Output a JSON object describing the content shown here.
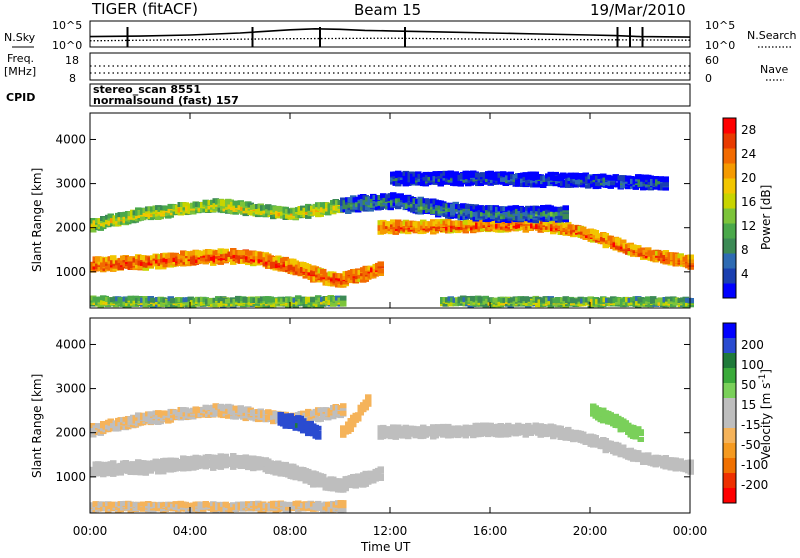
{
  "header": {
    "title": "TIGER (fitACF)",
    "beam": "Beam 15",
    "date": "19/Mar/2010"
  },
  "top_panel": {
    "nsky_label": "N.Sky",
    "nsearch_label": "N.Search",
    "y_top": "10^5",
    "y_bottom": "10^0",
    "freq_label": "Freq.",
    "freq_unit": "[MHz]",
    "freq_top": "18",
    "freq_bottom": "8",
    "nave_top": "60",
    "nave_bottom": "0",
    "nave_label": "Nave",
    "cpid_label": "CPID",
    "cpid_line1": "stereo_scan 8551",
    "cpid_line2": "normalsound (fast) 157"
  },
  "colors": {
    "power": [
      "#0000ff",
      "#1a3fb0",
      "#2e6bb3",
      "#3c8a55",
      "#4aa84a",
      "#7cc43a",
      "#c8d400",
      "#f2c600",
      "#f59a00",
      "#f26a00",
      "#e83a00",
      "#ff0000"
    ],
    "velocity": [
      "#0000ff",
      "#2a4bd0",
      "#1f7a3a",
      "#3aaa3a",
      "#7ad05a",
      "#bebebe",
      "#bebebe",
      "#f5b35a",
      "#f59a20",
      "#f07000",
      "#ee3000",
      "#ff0000"
    ],
    "ground": "#bebebe"
  },
  "chart_data": [
    {
      "type": "heatmap",
      "name": "power",
      "xlabel": "",
      "ylabel": "Slant Range [km]",
      "x_ticks": [
        "00:00",
        "04:00",
        "08:00",
        "12:00",
        "16:00",
        "20:00",
        "00:00"
      ],
      "y_ticks": [
        "1000",
        "2000",
        "3000",
        "4000"
      ],
      "xlim": [
        0,
        24
      ],
      "ylim": [
        180,
        4600
      ],
      "colorbar": {
        "label": "Power [dB]",
        "ticks": [
          "4",
          "8",
          "12",
          "16",
          "20",
          "24",
          "28"
        ],
        "range": [
          0,
          30
        ]
      },
      "echo_bands": [
        {
          "x": [
            0,
            2,
            4,
            6,
            8,
            9,
            10,
            11.5
          ],
          "center": [
            1150,
            1200,
            1300,
            1350,
            1100,
            900,
            800,
            1050
          ],
          "width": 220,
          "value": 27
        },
        {
          "x": [
            11.5,
            13,
            16,
            18,
            19.5,
            21,
            22,
            24
          ],
          "center": [
            2000,
            2000,
            2050,
            2050,
            1900,
            1600,
            1400,
            1200
          ],
          "width": 180,
          "value": 26
        },
        {
          "x": [
            0,
            2,
            5,
            8,
            10
          ],
          "center": [
            2050,
            2300,
            2500,
            2300,
            2500
          ],
          "width": 180,
          "value": 18
        },
        {
          "x": [
            10,
            12,
            14,
            16,
            19
          ],
          "center": [
            2500,
            2600,
            2400,
            2300,
            2300
          ],
          "width": 250,
          "value": 9
        },
        {
          "x": [
            12,
            16,
            20,
            23
          ],
          "center": [
            3100,
            3100,
            3050,
            3000
          ],
          "width": 200,
          "value": 6
        },
        {
          "x": [
            0,
            3,
            6,
            10
          ],
          "center": [
            320,
            300,
            300,
            320
          ],
          "width": 120,
          "value": 16
        },
        {
          "x": [
            14,
            18,
            24
          ],
          "center": [
            320,
            300,
            300
          ],
          "width": 110,
          "value": 16
        }
      ]
    },
    {
      "type": "heatmap",
      "name": "velocity",
      "xlabel": "Time UT",
      "ylabel": "Slant Range [km]",
      "x_ticks": [
        "00:00",
        "04:00",
        "08:00",
        "12:00",
        "16:00",
        "20:00",
        "00:00"
      ],
      "y_ticks": [
        "1000",
        "2000",
        "3000",
        "4000"
      ],
      "xlim": [
        0,
        24
      ],
      "ylim": [
        180,
        4600
      ],
      "colorbar": {
        "label": "Velocity [m s",
        "label_sup": "-1",
        "label_close": "]",
        "ticks": [
          "200",
          "100",
          "50",
          "15",
          "-15",
          "-50",
          "-100",
          "-200"
        ],
        "range": [
          -250,
          250
        ]
      },
      "echo_bands": [
        {
          "x": [
            0,
            2,
            4,
            6,
            8,
            9,
            10,
            11.5
          ],
          "center": [
            1150,
            1200,
            1300,
            1350,
            1100,
            900,
            800,
            1050
          ],
          "width": 220,
          "value": 0
        },
        {
          "x": [
            11.5,
            13,
            16,
            18,
            19.5,
            21,
            22,
            24
          ],
          "center": [
            2000,
            2000,
            2050,
            2050,
            1900,
            1600,
            1400,
            1200
          ],
          "width": 180,
          "value": 0
        },
        {
          "x": [
            0,
            2,
            5,
            8,
            10
          ],
          "center": [
            2050,
            2300,
            2500,
            2300,
            2500
          ],
          "width": 180,
          "value": -40
        },
        {
          "x": [
            7.5,
            8.2,
            9
          ],
          "center": [
            2300,
            2200,
            2000
          ],
          "width": 220,
          "value": 180
        },
        {
          "x": [
            10,
            10.5,
            11
          ],
          "center": [
            2000,
            2300,
            2700
          ],
          "width": 180,
          "value": -60
        },
        {
          "x": [
            20,
            21,
            22
          ],
          "center": [
            2500,
            2200,
            1900
          ],
          "width": 200,
          "value": 60
        },
        {
          "x": [
            0,
            3,
            6,
            10
          ],
          "center": [
            320,
            300,
            300,
            320
          ],
          "width": 120,
          "value": -40
        }
      ]
    }
  ],
  "top_series": {
    "nsky": [
      {
        "t": 0,
        "v": 2
      },
      {
        "t": 2,
        "v": 2.1
      },
      {
        "t": 4,
        "v": 2.3
      },
      {
        "t": 6,
        "v": 2.7
      },
      {
        "t": 8,
        "v": 3.3
      },
      {
        "t": 9,
        "v": 3.5
      },
      {
        "t": 10,
        "v": 3.4
      },
      {
        "t": 11,
        "v": 3.2
      },
      {
        "t": 12,
        "v": 3.1
      },
      {
        "t": 13,
        "v": 3
      },
      {
        "t": 14,
        "v": 2.9
      },
      {
        "t": 16,
        "v": 2.7
      },
      {
        "t": 18,
        "v": 2.5
      },
      {
        "t": 20,
        "v": 2.3
      },
      {
        "t": 21,
        "v": 2.2
      },
      {
        "t": 22,
        "v": 2
      },
      {
        "t": 24,
        "v": 1.9
      }
    ],
    "nsearch": [
      {
        "t": 0,
        "v": 1.2
      },
      {
        "t": 4,
        "v": 1.4
      },
      {
        "t": 8,
        "v": 1.6
      },
      {
        "t": 12,
        "v": 1.7
      },
      {
        "t": 16,
        "v": 1.5
      },
      {
        "t": 20,
        "v": 1.4
      },
      {
        "t": 24,
        "v": 1.3
      }
    ]
  }
}
